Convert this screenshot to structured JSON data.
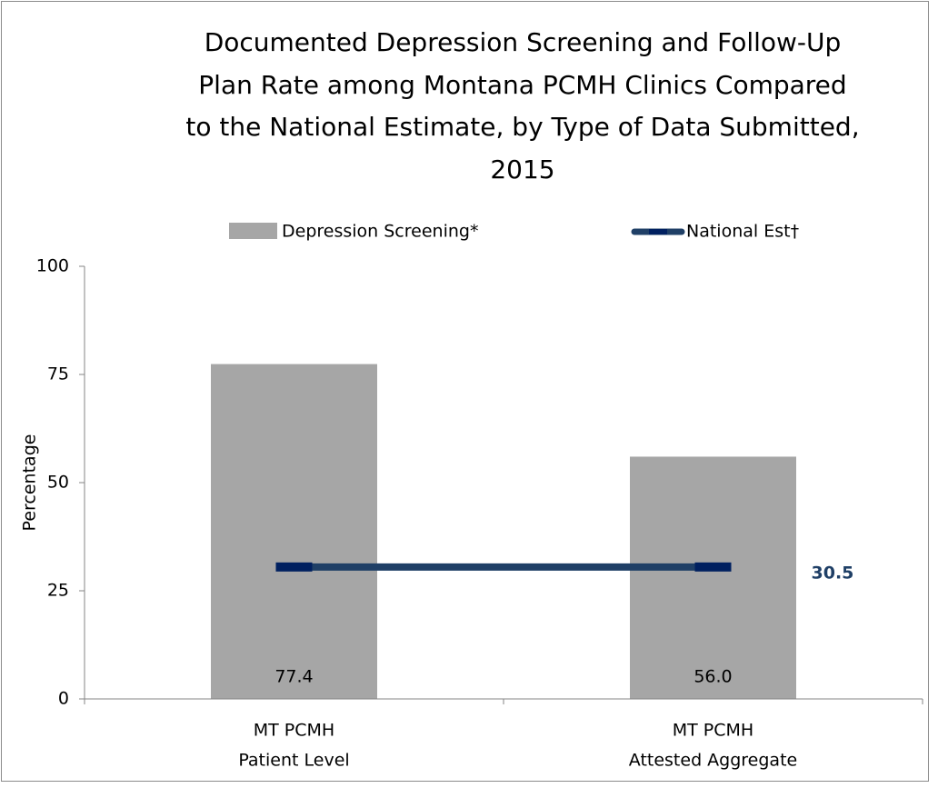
{
  "chart_data": {
    "type": "bar",
    "title": [
      "Documented Depression Screening and Follow-Up",
      "Plan Rate among Montana PCMH Clinics Compared",
      "to the National Estimate, by Type of Data Submitted,",
      "2015"
    ],
    "y_label": "Percentage",
    "categories": [
      [
        "MT PCMH",
        "Patient Level"
      ],
      [
        "MT PCMH",
        "Attested Aggregate"
      ]
    ],
    "series": [
      {
        "name": "Depression Screening*",
        "type": "bar",
        "color": "#a6a6a6",
        "values": [
          77.4,
          56
        ],
        "value_labels": [
          "77.4",
          "56.0"
        ]
      },
      {
        "name": "National Est†",
        "type": "line",
        "color": "#1f3f66",
        "marker_color": "#002060",
        "values": [
          30.5,
          30.5
        ]
      }
    ],
    "ylim": [
      0,
      100
    ],
    "yticks": [
      0,
      25,
      50,
      75,
      100
    ],
    "legend": "top"
  }
}
